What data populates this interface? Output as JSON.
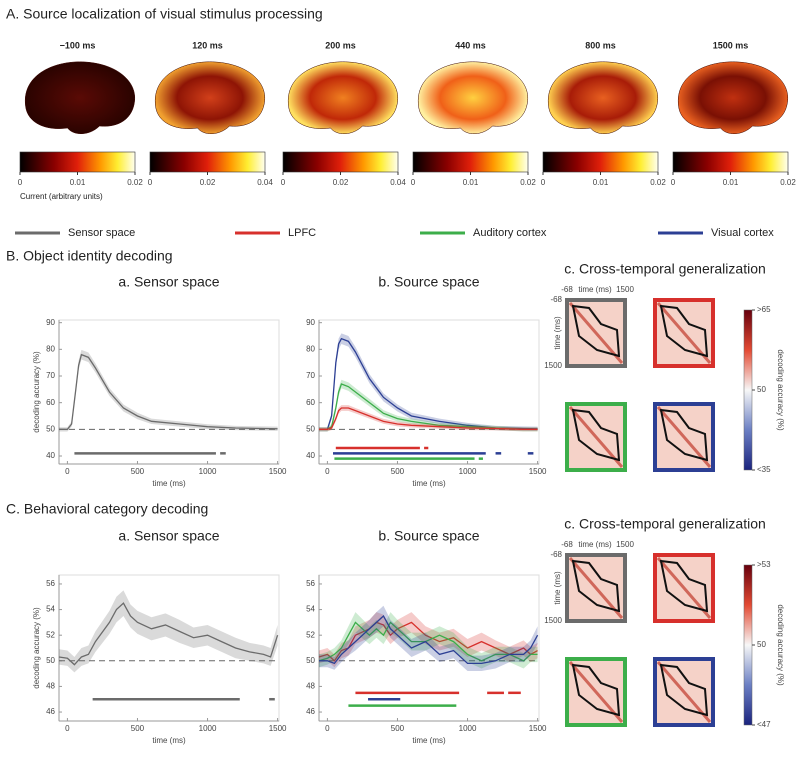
{
  "panel_a": {
    "title": "A. Source localization of visual stimulus processing",
    "colorbar_label": "Current (arbitrary units)",
    "brains": [
      {
        "label": "−100 ms",
        "lim": [
          0,
          0.02
        ],
        "ticks": [
          0,
          0.01,
          0.02
        ]
      },
      {
        "label": "120 ms",
        "lim": [
          0,
          0.04
        ],
        "ticks": [
          0,
          0.02,
          0.04
        ]
      },
      {
        "label": "200 ms",
        "lim": [
          0,
          0.04
        ],
        "ticks": [
          0,
          0.02,
          0.04
        ]
      },
      {
        "label": "440 ms",
        "lim": [
          0,
          0.02
        ],
        "ticks": [
          0,
          0.01,
          0.02
        ]
      },
      {
        "label": "800 ms",
        "lim": [
          0,
          0.02
        ],
        "ticks": [
          0,
          0.01,
          0.02
        ]
      },
      {
        "label": "1500 ms",
        "lim": [
          0,
          0.02
        ],
        "ticks": [
          0,
          0.01,
          0.02
        ]
      }
    ]
  },
  "legend": [
    {
      "name": "Sensor space",
      "color": "#6b6b6b"
    },
    {
      "name": "LPFC",
      "color": "#d7302c"
    },
    {
      "name": "Auditory cortex",
      "color": "#3cae4a"
    },
    {
      "name": "Visual cortex",
      "color": "#2c3f94"
    }
  ],
  "section_b": {
    "title": "B. Object identity decoding",
    "generalization": {
      "title": "c. Cross-temporal generalization",
      "axis_label": "time (ms)",
      "ticks": [
        -68,
        1500
      ],
      "colorbar_label": "decoding accuracy (%)",
      "lim": [
        35,
        65
      ],
      "colorbar_ticks": [
        {
          "value": 65,
          "label": ">65"
        },
        50,
        {
          "value": 35,
          "label": "<35"
        }
      ]
    }
  },
  "section_c": {
    "title": "C. Behavioral category decoding",
    "generalization": {
      "title": "c. Cross-temporal generalization",
      "axis_label": "time (ms)",
      "ticks": [
        -68,
        1500
      ],
      "colorbar_label": "decoding accuracy (%)",
      "lim": [
        47,
        53
      ],
      "colorbar_ticks": [
        {
          "value": 53,
          "label": ">53"
        },
        50,
        {
          "value": 47,
          "label": "<47"
        }
      ]
    }
  },
  "chart_data": [
    {
      "type": "line",
      "title": "a. Sensor space",
      "x_label": "time (ms)",
      "y_label": "decoding accuracy (%)",
      "xlim": [
        -60,
        1510
      ],
      "ylim": [
        37,
        91
      ],
      "xticks": [
        0,
        500,
        1000,
        1500
      ],
      "yticks": [
        40,
        50,
        60,
        70,
        80,
        90
      ],
      "reference_line": 50,
      "x": [
        -60,
        0,
        30,
        60,
        80,
        100,
        150,
        200,
        300,
        400,
        500,
        600,
        800,
        1000,
        1200,
        1400,
        1500
      ],
      "series": [
        {
          "name": "Sensor space",
          "color": "#6b6b6b",
          "values": [
            50,
            50,
            52,
            65,
            74,
            78,
            77,
            73,
            64,
            58,
            55,
            53,
            52,
            51,
            50.5,
            50.3,
            50.2
          ],
          "errors": [
            0.8,
            0.8,
            1,
            1.5,
            1.8,
            1.8,
            1.8,
            1.7,
            1.5,
            1.3,
            1.2,
            1,
            1,
            0.9,
            0.8,
            0.8,
            0.8
          ]
        }
      ],
      "significance": [
        {
          "color": "#6b6b6b",
          "y": 41,
          "segments": [
            [
              50,
              1060
            ],
            [
              1090,
              1130
            ]
          ]
        }
      ]
    },
    {
      "type": "line",
      "title": "b. Source space",
      "x_label": "time (ms)",
      "xlim": [
        -60,
        1510
      ],
      "ylim": [
        37,
        91
      ],
      "xticks": [
        0,
        500,
        1000,
        1500
      ],
      "yticks": [
        40,
        50,
        60,
        70,
        80,
        90
      ],
      "reference_line": 50,
      "x": [
        -60,
        0,
        30,
        60,
        80,
        100,
        150,
        200,
        300,
        400,
        500,
        600,
        800,
        1000,
        1200,
        1400,
        1500
      ],
      "series": [
        {
          "name": "Visual cortex",
          "color": "#2c3f94",
          "values": [
            50,
            50,
            55,
            75,
            82,
            84,
            83,
            79,
            69,
            62,
            58,
            55,
            53,
            51.5,
            50.5,
            50.3,
            50.2
          ],
          "errors": [
            0.8,
            0.8,
            1.2,
            1.8,
            2,
            2,
            2,
            1.9,
            1.7,
            1.5,
            1.3,
            1.2,
            1,
            0.9,
            0.8,
            0.8,
            0.8
          ]
        },
        {
          "name": "Auditory cortex",
          "color": "#3cae4a",
          "values": [
            50,
            50,
            51,
            58,
            64,
            67,
            66,
            64,
            60,
            56,
            54,
            53,
            51.5,
            51,
            50.5,
            50,
            50
          ],
          "errors": [
            0.8,
            0.8,
            1,
            1.4,
            1.6,
            1.6,
            1.6,
            1.5,
            1.4,
            1.2,
            1.1,
            1,
            0.9,
            0.9,
            0.8,
            0.8,
            0.8
          ]
        },
        {
          "name": "LPFC",
          "color": "#d7302c",
          "values": [
            50,
            50,
            50.5,
            54,
            57,
            58,
            58,
            57,
            55,
            53,
            52,
            51.5,
            51,
            50.5,
            50.3,
            50,
            50
          ],
          "errors": [
            0.7,
            0.7,
            0.8,
            1,
            1.1,
            1.1,
            1.1,
            1,
            1,
            0.9,
            0.9,
            0.8,
            0.8,
            0.8,
            0.7,
            0.7,
            0.7
          ]
        }
      ],
      "significance": [
        {
          "color": "#d7302c",
          "y": 43,
          "segments": [
            [
              60,
              660
            ],
            [
              690,
              720
            ]
          ]
        },
        {
          "color": "#2c3f94",
          "y": 41,
          "segments": [
            [
              40,
              1130
            ],
            [
              1200,
              1240
            ],
            [
              1430,
              1470
            ]
          ]
        },
        {
          "color": "#3cae4a",
          "y": 39,
          "segments": [
            [
              50,
              1050
            ],
            [
              1080,
              1110
            ]
          ]
        }
      ]
    },
    {
      "type": "line",
      "title": "a. Sensor space",
      "x_label": "time (ms)",
      "y_label": "decoding accuracy (%)",
      "xlim": [
        -60,
        1510
      ],
      "ylim": [
        45.3,
        56.7
      ],
      "xticks": [
        0,
        500,
        1000,
        1500
      ],
      "yticks": [
        46,
        48,
        50,
        52,
        54,
        56
      ],
      "reference_line": 50,
      "x": [
        -60,
        0,
        50,
        100,
        150,
        200,
        300,
        350,
        400,
        450,
        500,
        600,
        700,
        800,
        900,
        1000,
        1100,
        1200,
        1300,
        1400,
        1450,
        1500
      ],
      "series": [
        {
          "name": "Sensor space",
          "color": "#6b6b6b",
          "values": [
            50.3,
            50.2,
            49.7,
            50.3,
            50.5,
            51.5,
            53,
            54,
            54.5,
            53.5,
            53,
            52.5,
            52.8,
            52.3,
            51.8,
            52,
            51.5,
            51,
            50.7,
            50.5,
            50.3,
            52
          ],
          "errors": [
            0.6,
            0.6,
            0.6,
            0.7,
            0.7,
            0.8,
            0.9,
            1,
            1,
            0.9,
            0.9,
            0.9,
            0.9,
            0.9,
            0.8,
            0.8,
            0.8,
            0.8,
            0.7,
            0.7,
            0.7,
            0.8
          ]
        }
      ],
      "significance": [
        {
          "color": "#6b6b6b",
          "y": 47,
          "segments": [
            [
              180,
              1230
            ],
            [
              1440,
              1480
            ]
          ]
        }
      ]
    },
    {
      "type": "line",
      "title": "b. Source space",
      "x_label": "time (ms)",
      "xlim": [
        -60,
        1510
      ],
      "ylim": [
        45.3,
        56.7
      ],
      "xticks": [
        0,
        500,
        1000,
        1500
      ],
      "yticks": [
        46,
        48,
        50,
        52,
        54,
        56
      ],
      "reference_line": 50,
      "x": [
        -60,
        0,
        50,
        100,
        150,
        200,
        300,
        350,
        400,
        450,
        500,
        600,
        700,
        800,
        900,
        1000,
        1100,
        1200,
        1300,
        1400,
        1450,
        1500
      ],
      "series": [
        {
          "name": "LPFC",
          "color": "#d7302c",
          "values": [
            50.3,
            50.5,
            50,
            50.8,
            51,
            52,
            52.5,
            53,
            52.8,
            52,
            52.5,
            53,
            52,
            51.5,
            51.8,
            51,
            51.5,
            51,
            50.5,
            51,
            50.5,
            50.8
          ],
          "errors": [
            0.5,
            0.5,
            0.5,
            0.6,
            0.6,
            0.7,
            0.7,
            0.8,
            0.8,
            0.7,
            0.7,
            0.8,
            0.7,
            0.7,
            0.7,
            0.7,
            0.7,
            0.6,
            0.6,
            0.6,
            0.6,
            0.6
          ]
        },
        {
          "name": "Auditory cortex",
          "color": "#3cae4a",
          "values": [
            50,
            50.2,
            50.5,
            51,
            52,
            53,
            52,
            52.5,
            52,
            53,
            52.5,
            51.5,
            51.5,
            52,
            51.5,
            50.5,
            50,
            50.5,
            50.5,
            50,
            50.5,
            50.5
          ],
          "errors": [
            0.5,
            0.5,
            0.5,
            0.6,
            0.7,
            0.8,
            0.7,
            0.7,
            0.7,
            0.8,
            0.7,
            0.7,
            0.7,
            0.7,
            0.7,
            0.6,
            0.6,
            0.6,
            0.6,
            0.6,
            0.6,
            0.6
          ]
        },
        {
          "name": "Visual cortex",
          "color": "#2c3f94",
          "values": [
            50,
            50,
            49.8,
            50.5,
            51,
            51.5,
            52.5,
            53,
            53.5,
            52.5,
            52,
            51,
            51.5,
            50.5,
            50.8,
            49.8,
            49.8,
            50,
            50.5,
            50.5,
            51,
            52
          ],
          "errors": [
            0.5,
            0.5,
            0.5,
            0.6,
            0.6,
            0.7,
            0.7,
            0.8,
            0.8,
            0.7,
            0.7,
            0.7,
            0.7,
            0.6,
            0.6,
            0.6,
            0.6,
            0.6,
            0.6,
            0.6,
            0.6,
            0.7
          ]
        }
      ],
      "significance": [
        {
          "color": "#d7302c",
          "y": 47.5,
          "segments": [
            [
              200,
              940
            ],
            [
              1140,
              1260
            ],
            [
              1290,
              1380
            ]
          ]
        },
        {
          "color": "#2c3f94",
          "y": 47,
          "segments": [
            [
              290,
              520
            ]
          ]
        },
        {
          "color": "#3cae4a",
          "y": 46.5,
          "segments": [
            [
              150,
              920
            ]
          ]
        }
      ]
    }
  ]
}
